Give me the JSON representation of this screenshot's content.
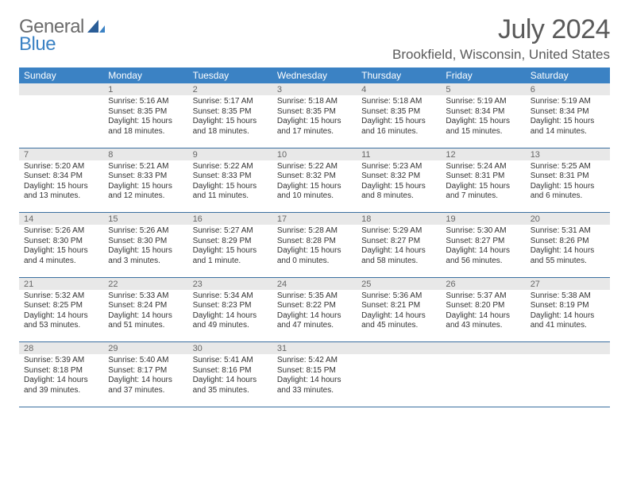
{
  "logo": {
    "text1": "General",
    "text2": "Blue"
  },
  "title": "July 2024",
  "location": "Brookfield, Wisconsin, United States",
  "weekdays": [
    "Sunday",
    "Monday",
    "Tuesday",
    "Wednesday",
    "Thursday",
    "Friday",
    "Saturday"
  ],
  "colors": {
    "header_bg": "#3b82c4",
    "header_text": "#ffffff",
    "daynum_bg": "#e8e8e8",
    "cell_border": "#3b6fa0",
    "title_color": "#5a5a5a",
    "logo_gray": "#6b6b6b",
    "logo_blue": "#3b82c4"
  },
  "weeks": [
    [
      null,
      {
        "n": "1",
        "sr": "Sunrise: 5:16 AM",
        "ss": "Sunset: 8:35 PM",
        "d1": "Daylight: 15 hours",
        "d2": "and 18 minutes."
      },
      {
        "n": "2",
        "sr": "Sunrise: 5:17 AM",
        "ss": "Sunset: 8:35 PM",
        "d1": "Daylight: 15 hours",
        "d2": "and 18 minutes."
      },
      {
        "n": "3",
        "sr": "Sunrise: 5:18 AM",
        "ss": "Sunset: 8:35 PM",
        "d1": "Daylight: 15 hours",
        "d2": "and 17 minutes."
      },
      {
        "n": "4",
        "sr": "Sunrise: 5:18 AM",
        "ss": "Sunset: 8:35 PM",
        "d1": "Daylight: 15 hours",
        "d2": "and 16 minutes."
      },
      {
        "n": "5",
        "sr": "Sunrise: 5:19 AM",
        "ss": "Sunset: 8:34 PM",
        "d1": "Daylight: 15 hours",
        "d2": "and 15 minutes."
      },
      {
        "n": "6",
        "sr": "Sunrise: 5:19 AM",
        "ss": "Sunset: 8:34 PM",
        "d1": "Daylight: 15 hours",
        "d2": "and 14 minutes."
      }
    ],
    [
      {
        "n": "7",
        "sr": "Sunrise: 5:20 AM",
        "ss": "Sunset: 8:34 PM",
        "d1": "Daylight: 15 hours",
        "d2": "and 13 minutes."
      },
      {
        "n": "8",
        "sr": "Sunrise: 5:21 AM",
        "ss": "Sunset: 8:33 PM",
        "d1": "Daylight: 15 hours",
        "d2": "and 12 minutes."
      },
      {
        "n": "9",
        "sr": "Sunrise: 5:22 AM",
        "ss": "Sunset: 8:33 PM",
        "d1": "Daylight: 15 hours",
        "d2": "and 11 minutes."
      },
      {
        "n": "10",
        "sr": "Sunrise: 5:22 AM",
        "ss": "Sunset: 8:32 PM",
        "d1": "Daylight: 15 hours",
        "d2": "and 10 minutes."
      },
      {
        "n": "11",
        "sr": "Sunrise: 5:23 AM",
        "ss": "Sunset: 8:32 PM",
        "d1": "Daylight: 15 hours",
        "d2": "and 8 minutes."
      },
      {
        "n": "12",
        "sr": "Sunrise: 5:24 AM",
        "ss": "Sunset: 8:31 PM",
        "d1": "Daylight: 15 hours",
        "d2": "and 7 minutes."
      },
      {
        "n": "13",
        "sr": "Sunrise: 5:25 AM",
        "ss": "Sunset: 8:31 PM",
        "d1": "Daylight: 15 hours",
        "d2": "and 6 minutes."
      }
    ],
    [
      {
        "n": "14",
        "sr": "Sunrise: 5:26 AM",
        "ss": "Sunset: 8:30 PM",
        "d1": "Daylight: 15 hours",
        "d2": "and 4 minutes."
      },
      {
        "n": "15",
        "sr": "Sunrise: 5:26 AM",
        "ss": "Sunset: 8:30 PM",
        "d1": "Daylight: 15 hours",
        "d2": "and 3 minutes."
      },
      {
        "n": "16",
        "sr": "Sunrise: 5:27 AM",
        "ss": "Sunset: 8:29 PM",
        "d1": "Daylight: 15 hours",
        "d2": "and 1 minute."
      },
      {
        "n": "17",
        "sr": "Sunrise: 5:28 AM",
        "ss": "Sunset: 8:28 PM",
        "d1": "Daylight: 15 hours",
        "d2": "and 0 minutes."
      },
      {
        "n": "18",
        "sr": "Sunrise: 5:29 AM",
        "ss": "Sunset: 8:27 PM",
        "d1": "Daylight: 14 hours",
        "d2": "and 58 minutes."
      },
      {
        "n": "19",
        "sr": "Sunrise: 5:30 AM",
        "ss": "Sunset: 8:27 PM",
        "d1": "Daylight: 14 hours",
        "d2": "and 56 minutes."
      },
      {
        "n": "20",
        "sr": "Sunrise: 5:31 AM",
        "ss": "Sunset: 8:26 PM",
        "d1": "Daylight: 14 hours",
        "d2": "and 55 minutes."
      }
    ],
    [
      {
        "n": "21",
        "sr": "Sunrise: 5:32 AM",
        "ss": "Sunset: 8:25 PM",
        "d1": "Daylight: 14 hours",
        "d2": "and 53 minutes."
      },
      {
        "n": "22",
        "sr": "Sunrise: 5:33 AM",
        "ss": "Sunset: 8:24 PM",
        "d1": "Daylight: 14 hours",
        "d2": "and 51 minutes."
      },
      {
        "n": "23",
        "sr": "Sunrise: 5:34 AM",
        "ss": "Sunset: 8:23 PM",
        "d1": "Daylight: 14 hours",
        "d2": "and 49 minutes."
      },
      {
        "n": "24",
        "sr": "Sunrise: 5:35 AM",
        "ss": "Sunset: 8:22 PM",
        "d1": "Daylight: 14 hours",
        "d2": "and 47 minutes."
      },
      {
        "n": "25",
        "sr": "Sunrise: 5:36 AM",
        "ss": "Sunset: 8:21 PM",
        "d1": "Daylight: 14 hours",
        "d2": "and 45 minutes."
      },
      {
        "n": "26",
        "sr": "Sunrise: 5:37 AM",
        "ss": "Sunset: 8:20 PM",
        "d1": "Daylight: 14 hours",
        "d2": "and 43 minutes."
      },
      {
        "n": "27",
        "sr": "Sunrise: 5:38 AM",
        "ss": "Sunset: 8:19 PM",
        "d1": "Daylight: 14 hours",
        "d2": "and 41 minutes."
      }
    ],
    [
      {
        "n": "28",
        "sr": "Sunrise: 5:39 AM",
        "ss": "Sunset: 8:18 PM",
        "d1": "Daylight: 14 hours",
        "d2": "and 39 minutes."
      },
      {
        "n": "29",
        "sr": "Sunrise: 5:40 AM",
        "ss": "Sunset: 8:17 PM",
        "d1": "Daylight: 14 hours",
        "d2": "and 37 minutes."
      },
      {
        "n": "30",
        "sr": "Sunrise: 5:41 AM",
        "ss": "Sunset: 8:16 PM",
        "d1": "Daylight: 14 hours",
        "d2": "and 35 minutes."
      },
      {
        "n": "31",
        "sr": "Sunrise: 5:42 AM",
        "ss": "Sunset: 8:15 PM",
        "d1": "Daylight: 14 hours",
        "d2": "and 33 minutes."
      },
      null,
      null,
      null
    ]
  ]
}
